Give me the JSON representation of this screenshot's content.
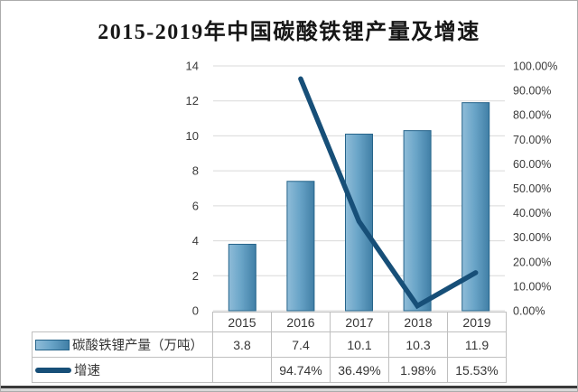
{
  "chart_data": {
    "type": "bar+line",
    "title": "2015-2019年中国碳酸铁锂产量及增速",
    "categories": [
      "2015",
      "2016",
      "2017",
      "2018",
      "2019"
    ],
    "series": [
      {
        "name": "碳酸铁锂产量（万吨）",
        "type": "bar",
        "axis": "left",
        "values": [
          3.8,
          7.4,
          10.1,
          10.3,
          11.9
        ]
      },
      {
        "name": "增速",
        "type": "line",
        "axis": "right",
        "values": [
          null,
          94.74,
          36.49,
          1.98,
          15.53
        ],
        "value_labels": [
          "",
          "94.74%",
          "36.49%",
          "1.98%",
          "15.53%"
        ]
      }
    ],
    "left_axis": {
      "min": 0,
      "max": 14,
      "ticks": [
        0,
        2,
        4,
        6,
        8,
        10,
        12,
        14
      ]
    },
    "right_axis": {
      "min": 0,
      "max": 100,
      "tick_labels": [
        "100.00%",
        "90.00%",
        "80.00%",
        "70.00%",
        "60.00%",
        "50.00%",
        "40.00%",
        "30.00%",
        "20.00%",
        "10.00%",
        "0.00%"
      ]
    },
    "grid": true,
    "legend_position": "table rows below chart"
  },
  "table": {
    "year_header": [
      "2015",
      "2016",
      "2017",
      "2018",
      "2019"
    ],
    "rows": [
      {
        "label": "碳酸铁锂产量（万吨）",
        "values": [
          "3.8",
          "7.4",
          "10.1",
          "10.3",
          "11.9"
        ]
      },
      {
        "label": "增速",
        "values": [
          "",
          "94.74%",
          "36.49%",
          "1.98%",
          "15.53%"
        ]
      }
    ]
  },
  "colors": {
    "bar_fill_light": "#8fbcd8",
    "bar_fill_mid": "#6aa5c8",
    "bar_fill_dark": "#417fa6",
    "bar_edge": "#26648a",
    "line": "#174f78",
    "grid": "#d9d9d9",
    "table_border": "#bfbfbf",
    "axis_text": "#3a3a3a",
    "title_text": "#161616"
  }
}
